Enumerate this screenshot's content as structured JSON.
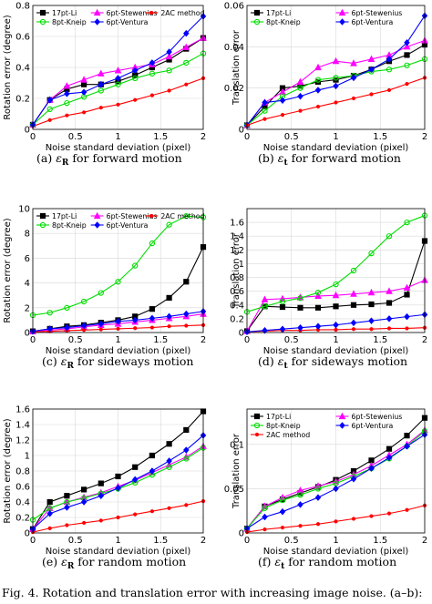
{
  "chart_data": [
    {
      "type": "line",
      "id": "a",
      "xlabel": "Noise standard deviation (pixel)",
      "ylabel": "Rotation error (degree)",
      "xlim": [
        0,
        2
      ],
      "ylim": [
        0,
        0.8
      ],
      "xticks": [
        0,
        0.5,
        1,
        1.5,
        2
      ],
      "xticklabels": [
        "0",
        "0.5",
        "1",
        "1.5",
        "2"
      ],
      "yticks": [
        0,
        0.2,
        0.4,
        0.6,
        0.8
      ],
      "yticklabels": [
        "0",
        "0.2",
        "0.4",
        "0.6",
        "0.8"
      ],
      "caption": {
        "label": "(a)",
        "sym": "ε",
        "sub": "R",
        "text": "for forward motion"
      },
      "legend": {
        "placement": "top",
        "cols": 3
      },
      "x": [
        0,
        0.2,
        0.4,
        0.6,
        0.8,
        1.0,
        1.2,
        1.4,
        1.6,
        1.8,
        2.0
      ],
      "series": [
        {
          "name": "17pt-Li",
          "color": "#000000",
          "marker": "square",
          "values": [
            0.03,
            0.19,
            0.26,
            0.29,
            0.29,
            0.31,
            0.35,
            0.4,
            0.45,
            0.52,
            0.59
          ]
        },
        {
          "name": "6pt-Stewenius",
          "color": "#ff00ff",
          "marker": "triangle",
          "values": [
            0.03,
            0.19,
            0.28,
            0.32,
            0.36,
            0.38,
            0.4,
            0.42,
            0.47,
            0.53,
            0.59
          ]
        },
        {
          "name": "2AC method",
          "color": "#ff0000",
          "marker": "dot",
          "values": [
            0.02,
            0.06,
            0.09,
            0.11,
            0.14,
            0.16,
            0.19,
            0.22,
            0.25,
            0.29,
            0.33
          ]
        },
        {
          "name": "8pt-Kneip",
          "color": "#00dd00",
          "marker": "circle",
          "values": [
            0.03,
            0.13,
            0.17,
            0.21,
            0.25,
            0.29,
            0.33,
            0.36,
            0.38,
            0.43,
            0.49
          ]
        },
        {
          "name": "6pt-Ventura",
          "color": "#0000ff",
          "marker": "diamond",
          "values": [
            0.03,
            0.19,
            0.23,
            0.24,
            0.29,
            0.33,
            0.38,
            0.43,
            0.5,
            0.62,
            0.73
          ]
        }
      ]
    },
    {
      "type": "line",
      "id": "b",
      "xlabel": "Noise standard deviation (pixel)",
      "ylabel": "Translation error",
      "xlim": [
        0,
        2
      ],
      "ylim": [
        0,
        0.06
      ],
      "xticks": [
        0,
        0.5,
        1,
        1.5,
        2
      ],
      "xticklabels": [
        "0",
        "0.5",
        "1",
        "1.5",
        "2"
      ],
      "yticks": [
        0,
        0.02,
        0.04,
        0.06
      ],
      "yticklabels": [
        "0",
        "0.02",
        "0.04",
        "0.06"
      ],
      "caption": {
        "label": "(b)",
        "sym": "ε",
        "sub": "t",
        "text": "for forward motion"
      },
      "legend": {
        "placement": "top",
        "cols": 2
      },
      "x": [
        0,
        0.2,
        0.4,
        0.6,
        0.8,
        1.0,
        1.2,
        1.4,
        1.6,
        1.8,
        2.0
      ],
      "series": [
        {
          "name": "17pt-Li",
          "color": "#000000",
          "marker": "square",
          "values": [
            0.002,
            0.011,
            0.02,
            0.021,
            0.023,
            0.024,
            0.026,
            0.029,
            0.033,
            0.036,
            0.041
          ]
        },
        {
          "name": "6pt-Stewenius",
          "color": "#ff00ff",
          "marker": "triangle",
          "values": [
            0.002,
            0.013,
            0.018,
            0.023,
            0.03,
            0.033,
            0.032,
            0.034,
            0.036,
            0.04,
            0.043
          ]
        },
        {
          "name": "8pt-Kneip",
          "color": "#00dd00",
          "marker": "circle",
          "values": [
            0.002,
            0.009,
            0.016,
            0.02,
            0.024,
            0.025,
            0.026,
            0.028,
            0.029,
            0.031,
            0.034
          ]
        },
        {
          "name": "6pt-Ventura",
          "color": "#0000ff",
          "marker": "diamond",
          "values": [
            0.002,
            0.013,
            0.014,
            0.016,
            0.019,
            0.021,
            0.025,
            0.029,
            0.034,
            0.042,
            0.055
          ]
        },
        {
          "name": "",
          "color": "#ff0000",
          "marker": "dot",
          "values": [
            0.002,
            0.005,
            0.007,
            0.009,
            0.011,
            0.013,
            0.015,
            0.017,
            0.019,
            0.022,
            0.025
          ]
        }
      ]
    },
    {
      "type": "line",
      "id": "c",
      "xlabel": "Noise standard deviation (pixel)",
      "ylabel": "Rotation error (degree)",
      "xlim": [
        0,
        2
      ],
      "ylim": [
        0,
        10
      ],
      "xticks": [
        0,
        0.5,
        1,
        1.5,
        2
      ],
      "xticklabels": [
        "0",
        "0.5",
        "1",
        "1.5",
        "2"
      ],
      "yticks": [
        0,
        2,
        4,
        6,
        8,
        10
      ],
      "yticklabels": [
        "0",
        "2",
        "4",
        "6",
        "8",
        "10"
      ],
      "caption": {
        "label": "(c)",
        "sym": "ε",
        "sub": "R",
        "text": "for sideways motion"
      },
      "legend": {
        "placement": "top",
        "cols": 3
      },
      "x": [
        0,
        0.2,
        0.4,
        0.6,
        0.8,
        1.0,
        1.2,
        1.4,
        1.6,
        1.8,
        2.0
      ],
      "series": [
        {
          "name": "17pt-Li",
          "color": "#000000",
          "marker": "square",
          "values": [
            0.1,
            0.3,
            0.5,
            0.6,
            0.8,
            1.0,
            1.3,
            1.9,
            2.8,
            4.1,
            6.9
          ]
        },
        {
          "name": "6pt-Stewenius",
          "color": "#ff00ff",
          "marker": "triangle",
          "values": [
            0.1,
            0.2,
            0.3,
            0.45,
            0.6,
            0.7,
            0.85,
            1.0,
            1.15,
            1.3,
            1.5
          ]
        },
        {
          "name": "2AC method",
          "color": "#ff0000",
          "marker": "dot",
          "values": [
            0.05,
            0.1,
            0.15,
            0.2,
            0.25,
            0.3,
            0.35,
            0.4,
            0.5,
            0.55,
            0.6
          ]
        },
        {
          "name": "8pt-Kneip",
          "color": "#00dd00",
          "marker": "circle",
          "values": [
            1.4,
            1.6,
            2.0,
            2.5,
            3.2,
            4.1,
            5.4,
            7.2,
            8.7,
            9.4,
            9.3
          ]
        },
        {
          "name": "6pt-Ventura",
          "color": "#0000ff",
          "marker": "diamond",
          "values": [
            0.1,
            0.3,
            0.4,
            0.55,
            0.7,
            0.9,
            1.0,
            1.15,
            1.3,
            1.5,
            1.7
          ]
        }
      ]
    },
    {
      "type": "line",
      "id": "d",
      "xlabel": "Noise standard deviation (pixel)",
      "ylabel": "Translation error",
      "xlim": [
        0,
        2
      ],
      "ylim": [
        0,
        1.8
      ],
      "xticks": [
        0,
        0.5,
        1,
        1.5,
        2
      ],
      "xticklabels": [
        "0",
        "0.5",
        "1",
        "1.5",
        "2"
      ],
      "yticks": [
        0,
        0.2,
        0.4,
        0.6,
        0.8,
        1,
        1.2,
        1.4,
        1.6
      ],
      "yticklabels": [
        "0",
        "0.2",
        "0.4",
        "0.6",
        "0.8",
        "1",
        "1.2",
        "1.4",
        "1.6"
      ],
      "caption": {
        "label": "(d)",
        "sym": "ε",
        "sub": "t",
        "text": "for sideways motion"
      },
      "legend": {
        "placement": "top",
        "cols": 3
      },
      "x": [
        0,
        0.2,
        0.4,
        0.6,
        0.8,
        1.0,
        1.2,
        1.4,
        1.6,
        1.8,
        2.0
      ],
      "series": [
        {
          "name": "",
          "color": "#000000",
          "marker": "square",
          "values": [
            0.02,
            0.38,
            0.37,
            0.36,
            0.36,
            0.38,
            0.4,
            0.41,
            0.43,
            0.55,
            1.33
          ]
        },
        {
          "name": "",
          "color": "#ff00ff",
          "marker": "triangle",
          "values": [
            0.02,
            0.48,
            0.49,
            0.51,
            0.53,
            0.54,
            0.56,
            0.58,
            0.6,
            0.65,
            0.76
          ]
        },
        {
          "name": "",
          "color": "#ff0000",
          "marker": "dot",
          "values": [
            0.01,
            0.02,
            0.03,
            0.03,
            0.04,
            0.04,
            0.05,
            0.05,
            0.06,
            0.06,
            0.07
          ]
        },
        {
          "name": "",
          "color": "#00dd00",
          "marker": "circle",
          "values": [
            0.3,
            0.38,
            0.45,
            0.5,
            0.58,
            0.7,
            0.9,
            1.15,
            1.4,
            1.6,
            1.7
          ]
        },
        {
          "name": "",
          "color": "#0000ff",
          "marker": "diamond",
          "values": [
            0.01,
            0.03,
            0.05,
            0.07,
            0.09,
            0.11,
            0.14,
            0.17,
            0.2,
            0.23,
            0.26
          ]
        }
      ]
    },
    {
      "type": "line",
      "id": "e",
      "xlabel": "Noise standard deviation (pixel)",
      "ylabel": "Rotation error (degree)",
      "xlim": [
        0,
        2
      ],
      "ylim": [
        0,
        1.6
      ],
      "xticks": [
        0,
        0.5,
        1,
        1.5,
        2
      ],
      "xticklabels": [
        "0",
        "0.5",
        "1",
        "1.5",
        "2"
      ],
      "yticks": [
        0,
        0.2,
        0.4,
        0.6,
        0.8,
        1,
        1.2,
        1.4,
        1.6
      ],
      "yticklabels": [
        "0",
        "0.2",
        "0.4",
        "0.6",
        "0.8",
        "1",
        "1.2",
        "1.4",
        "1.6"
      ],
      "caption": {
        "label": "(e)",
        "sym": "ε",
        "sub": "R",
        "text": "for random motion"
      },
      "legend": {
        "placement": "none",
        "cols": 0
      },
      "x": [
        0,
        0.2,
        0.4,
        0.6,
        0.8,
        1.0,
        1.2,
        1.4,
        1.6,
        1.8,
        2.0
      ],
      "series": [
        {
          "name": "",
          "color": "#000000",
          "marker": "square",
          "values": [
            0.05,
            0.4,
            0.48,
            0.56,
            0.64,
            0.73,
            0.85,
            1.0,
            1.15,
            1.33,
            1.57
          ]
        },
        {
          "name": "",
          "color": "#ff00ff",
          "marker": "triangle",
          "values": [
            0.05,
            0.32,
            0.4,
            0.46,
            0.52,
            0.6,
            0.68,
            0.78,
            0.88,
            0.98,
            1.12
          ]
        },
        {
          "name": "",
          "color": "#ff0000",
          "marker": "dot",
          "values": [
            0.01,
            0.06,
            0.1,
            0.13,
            0.16,
            0.2,
            0.24,
            0.28,
            0.32,
            0.36,
            0.41
          ]
        },
        {
          "name": "",
          "color": "#00dd00",
          "marker": "circle",
          "values": [
            0.17,
            0.32,
            0.4,
            0.45,
            0.51,
            0.57,
            0.65,
            0.75,
            0.85,
            0.96,
            1.1
          ]
        },
        {
          "name": "",
          "color": "#0000ff",
          "marker": "diamond",
          "values": [
            0.05,
            0.25,
            0.33,
            0.4,
            0.48,
            0.58,
            0.69,
            0.8,
            0.93,
            1.07,
            1.26
          ]
        }
      ]
    },
    {
      "type": "line",
      "id": "f",
      "xlabel": "Noise standard deviation (pixel)",
      "ylabel": "Translation error",
      "xlim": [
        0,
        2
      ],
      "ylim": [
        0,
        0.14
      ],
      "xticks": [
        0,
        0.5,
        1,
        1.5,
        2
      ],
      "xticklabels": [
        "0",
        "0.5",
        "1",
        "1.5",
        "2"
      ],
      "yticks": [
        0,
        0.05,
        0.1
      ],
      "yticklabels": [
        "0",
        "0.05",
        "0.1"
      ],
      "caption": {
        "label": "(f)",
        "sym": "ε",
        "sub": "t",
        "text": "for random motion"
      },
      "legend": {
        "placement": "top",
        "cols": 2
      },
      "x": [
        0,
        0.2,
        0.4,
        0.6,
        0.8,
        1.0,
        1.2,
        1.4,
        1.6,
        1.8,
        2.0
      ],
      "series": [
        {
          "name": "17pt-Li",
          "color": "#000000",
          "marker": "square",
          "values": [
            0.005,
            0.03,
            0.038,
            0.045,
            0.052,
            0.06,
            0.07,
            0.082,
            0.095,
            0.11,
            0.13
          ]
        },
        {
          "name": "6pt-Stewenius",
          "color": "#ff00ff",
          "marker": "triangle",
          "values": [
            0.005,
            0.03,
            0.04,
            0.048,
            0.053,
            0.058,
            0.066,
            0.076,
            0.088,
            0.1,
            0.116
          ]
        },
        {
          "name": "8pt-Kneip",
          "color": "#00dd00",
          "marker": "circle",
          "values": [
            0.005,
            0.028,
            0.037,
            0.043,
            0.05,
            0.056,
            0.064,
            0.073,
            0.084,
            0.098,
            0.115
          ]
        },
        {
          "name": "6pt-Ventura",
          "color": "#0000ff",
          "marker": "diamond",
          "values": [
            0.005,
            0.018,
            0.024,
            0.032,
            0.04,
            0.05,
            0.061,
            0.073,
            0.085,
            0.098,
            0.111
          ]
        },
        {
          "name": "2AC method",
          "color": "#ff0000",
          "marker": "dot",
          "values": [
            0.001,
            0.004,
            0.006,
            0.008,
            0.01,
            0.013,
            0.016,
            0.019,
            0.022,
            0.026,
            0.031
          ]
        }
      ]
    }
  ],
  "figure_caption": "Fig. 4.   Rotation and translation error with increasing image noise. (a–b):"
}
